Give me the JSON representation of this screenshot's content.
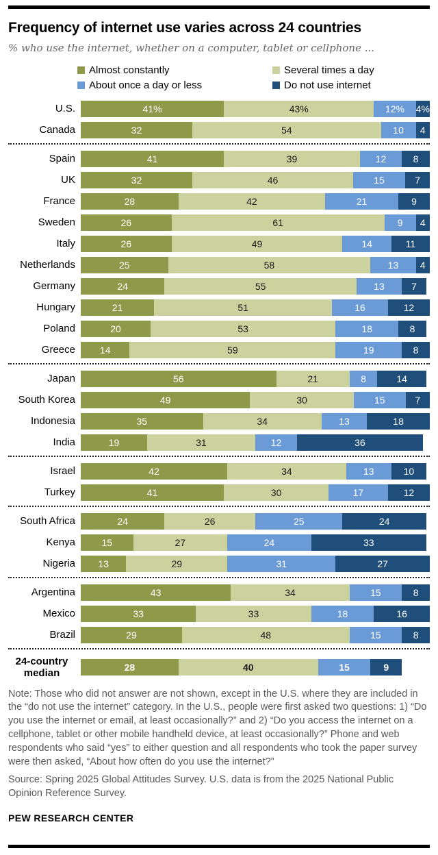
{
  "header": {
    "title": "Frequency of internet use varies across 24 countries",
    "subtitle": "% who use the internet, whether on a computer, tablet or cellphone ..."
  },
  "legend": [
    {
      "label": "Almost constantly",
      "color": "#8e9a4a"
    },
    {
      "label": "Several times a day",
      "color": "#ccd29e"
    },
    {
      "label": "About once a day or less",
      "color": "#6a9bd6"
    },
    {
      "label": "Do not use internet",
      "color": "#1e4e79"
    }
  ],
  "chart_data": {
    "type": "bar",
    "orientation": "horizontal",
    "stacked": true,
    "unit": "%",
    "xlim": [
      0,
      100
    ],
    "series_names": [
      "Almost constantly",
      "Several times a day",
      "About once a day or less",
      "Do not use internet"
    ],
    "colors": [
      "#8e9a4a",
      "#ccd29e",
      "#6a9bd6",
      "#1e4e79"
    ],
    "label_colors": [
      "#ffffff",
      "#1a1a1a",
      "#ffffff",
      "#ffffff"
    ],
    "groups": [
      {
        "rows": [
          {
            "label": "U.S.",
            "values": [
              41,
              43,
              12,
              4
            ],
            "value_labels": [
              "41%",
              "43%",
              "12%",
              "4%"
            ]
          },
          {
            "label": "Canada",
            "values": [
              32,
              54,
              10,
              4
            ]
          }
        ]
      },
      {
        "rows": [
          {
            "label": "Spain",
            "values": [
              41,
              39,
              12,
              8
            ]
          },
          {
            "label": "UK",
            "values": [
              32,
              46,
              15,
              7
            ]
          },
          {
            "label": "France",
            "values": [
              28,
              42,
              21,
              9
            ]
          },
          {
            "label": "Sweden",
            "values": [
              26,
              61,
              9,
              4
            ]
          },
          {
            "label": "Italy",
            "values": [
              26,
              49,
              14,
              11
            ]
          },
          {
            "label": "Netherlands",
            "values": [
              25,
              58,
              13,
              4
            ]
          },
          {
            "label": "Germany",
            "values": [
              24,
              55,
              13,
              7
            ]
          },
          {
            "label": "Hungary",
            "values": [
              21,
              51,
              16,
              12
            ]
          },
          {
            "label": "Poland",
            "values": [
              20,
              53,
              18,
              8
            ]
          },
          {
            "label": "Greece",
            "values": [
              14,
              59,
              19,
              8
            ]
          }
        ]
      },
      {
        "rows": [
          {
            "label": "Japan",
            "values": [
              56,
              21,
              8,
              14
            ]
          },
          {
            "label": "South Korea",
            "values": [
              49,
              30,
              15,
              7
            ]
          },
          {
            "label": "Indonesia",
            "values": [
              35,
              34,
              13,
              18
            ]
          },
          {
            "label": "India",
            "values": [
              19,
              31,
              12,
              36
            ]
          }
        ]
      },
      {
        "rows": [
          {
            "label": "Israel",
            "values": [
              42,
              34,
              13,
              10
            ]
          },
          {
            "label": "Turkey",
            "values": [
              41,
              30,
              17,
              12
            ]
          }
        ]
      },
      {
        "rows": [
          {
            "label": "South Africa",
            "values": [
              24,
              26,
              25,
              24
            ]
          },
          {
            "label": "Kenya",
            "values": [
              15,
              27,
              24,
              33
            ]
          },
          {
            "label": "Nigeria",
            "values": [
              13,
              29,
              31,
              27
            ]
          }
        ]
      },
      {
        "rows": [
          {
            "label": "Argentina",
            "values": [
              43,
              34,
              15,
              8
            ]
          },
          {
            "label": "Mexico",
            "values": [
              33,
              33,
              18,
              16
            ]
          },
          {
            "label": "Brazil",
            "values": [
              29,
              48,
              15,
              8
            ]
          }
        ]
      },
      {
        "rows": [
          {
            "label": "24-country median",
            "label_lines": [
              "24-country",
              "median"
            ],
            "values": [
              28,
              40,
              15,
              9
            ],
            "bold": true
          }
        ]
      }
    ]
  },
  "note": "Note: Those who did not answer are not shown, except in the U.S. where they are included in the “do not use the internet” category. In the U.S., people were first asked two questions: 1) “Do you use the internet or email, at least occasionally?” and 2) “Do you access the internet on a cellphone, tablet or other mobile handheld device, at least occasionally?” Phone and web respondents who said “yes” to either question and all respondents who took the paper survey were then asked, “About how often do you use the internet?”",
  "source": "Source: Spring 2025 Global Attitudes Survey. U.S. data is from the 2025 National Public Opinion Reference Survey.",
  "footer": "PEW RESEARCH CENTER"
}
